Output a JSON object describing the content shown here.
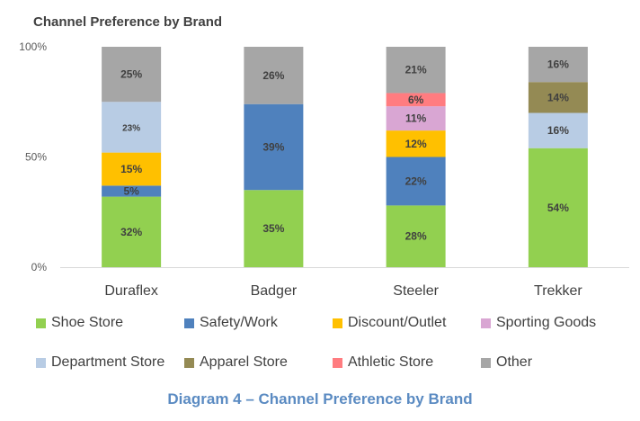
{
  "chart_data": {
    "type": "bar",
    "stacked": true,
    "percent_stacked": true,
    "title": "Channel Preference by Brand",
    "categories": [
      "Duraflex",
      "Badger",
      "Steeler",
      "Trekker"
    ],
    "ylim": [
      0,
      100
    ],
    "yticks": [
      "0%",
      "50%",
      "100%"
    ],
    "grid": false,
    "legend_position": "bottom",
    "series": [
      {
        "name": "Shoe Store",
        "color": "#92d050",
        "values": [
          32,
          35,
          28,
          54
        ],
        "labels": [
          "32%",
          "35%",
          "28%",
          "54%"
        ]
      },
      {
        "name": "Safety/Work",
        "color": "#4f81bd",
        "values": [
          5,
          39,
          22,
          0
        ],
        "labels": [
          "5%",
          "39%",
          "22%",
          ""
        ]
      },
      {
        "name": "Discount/Outlet",
        "color": "#ffc000",
        "values": [
          15,
          0,
          12,
          0
        ],
        "labels": [
          "15%",
          "",
          "12%",
          ""
        ]
      },
      {
        "name": "Sporting Goods",
        "color": "#d9a6d3",
        "values": [
          0,
          0,
          11,
          0
        ],
        "labels": [
          "",
          "",
          "11%",
          ""
        ]
      },
      {
        "name": "Department Store",
        "color": "#b8cce4",
        "values": [
          23,
          0,
          0,
          16
        ],
        "labels": [
          "23%",
          "",
          "",
          "16%"
        ]
      },
      {
        "name": "Apparel Store",
        "color": "#948a54",
        "values": [
          0,
          0,
          0,
          14
        ],
        "labels": [
          "",
          "",
          "",
          "14%"
        ]
      },
      {
        "name": "Athletic Store",
        "color": "#ff7c80",
        "values": [
          0,
          0,
          6,
          0
        ],
        "labels": [
          "",
          "",
          "6%",
          ""
        ]
      },
      {
        "name": "Other",
        "color": "#a6a6a6",
        "values": [
          25,
          26,
          21,
          16
        ],
        "labels": [
          "25%",
          "26%",
          "21%",
          "16%"
        ]
      }
    ]
  },
  "caption": "Diagram 4 – Channel Preference by Brand"
}
